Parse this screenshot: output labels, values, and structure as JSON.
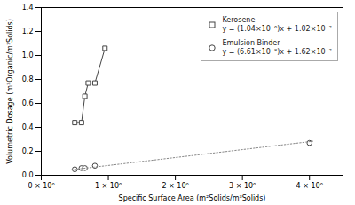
{
  "chart_data": {
    "type": "line",
    "x_label": "Specific Surface Area (m²Solids/m³Solids)",
    "y_label": "Volumetric Dosage (m³Organic/m³Solids)",
    "series": [
      {
        "name": "Kerosene\ny = (1.04×10⁻⁶)x + 1.02×10⁻²",
        "type": "line",
        "color": "#444444",
        "marker": "square",
        "line_style": "solid",
        "x": [
          500000,
          600000,
          650000,
          700000,
          800000,
          950000
        ],
        "values": [
          0.44,
          0.44,
          0.66,
          0.77,
          0.77,
          1.06
        ]
      },
      {
        "name": "Emulsion Binder\ny = (6.61×10⁻⁸)x + 1.62×10⁻²",
        "type": "scatter",
        "color": "#444444",
        "marker": "circle",
        "line_style": "none",
        "x": [
          500000,
          600000,
          650000,
          800000,
          4000000
        ],
        "values": [
          0.05,
          0.06,
          0.06,
          0.08,
          0.27
        ]
      },
      {
        "type": "line",
        "color": "#888888",
        "line_style": "dotted",
        "x": [
          450000,
          4050000
        ],
        "values": [
          0.045945,
          0.283905
        ]
      }
    ],
    "xlim": [
      0,
      4500000
    ],
    "ylim": [
      0,
      1.4
    ],
    "xticks": [
      {
        "value": 0,
        "label": "0 × 10⁶"
      },
      {
        "value": 1000000,
        "label": "1 × 10⁶"
      },
      {
        "value": 2000000,
        "label": "2 × 10⁶"
      },
      {
        "value": 3000000,
        "label": "3 × 10⁶"
      },
      {
        "value": 4000000,
        "label": "4 × 10⁶"
      }
    ],
    "yticks": [
      {
        "value": 0,
        "label": "0.0"
      },
      0.2,
      0.4,
      0.6,
      0.8,
      {
        "value": 1,
        "label": "1.0"
      },
      1.2,
      1.4
    ],
    "legend": "upper right"
  }
}
